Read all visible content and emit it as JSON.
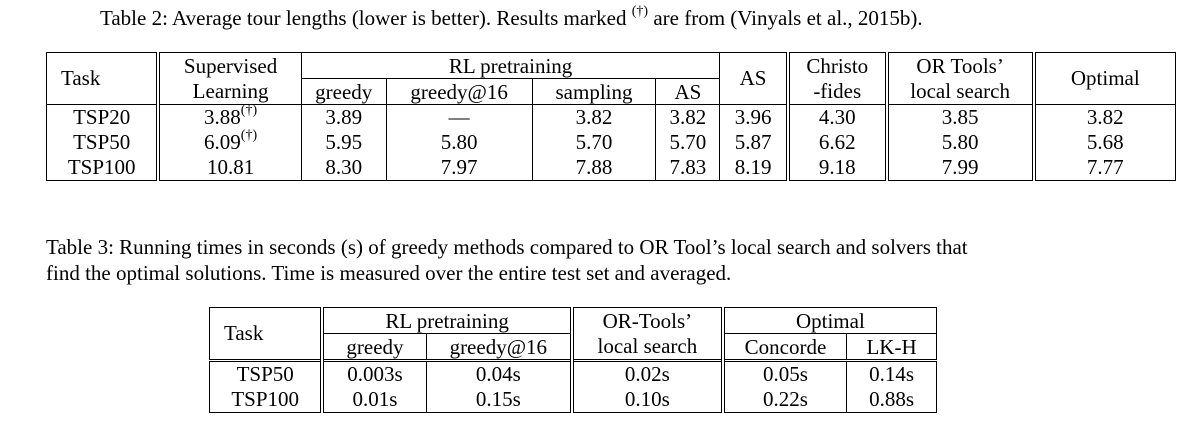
{
  "table2": {
    "caption_text": "Table 2: Average tour lengths (lower is better). Results marked ",
    "caption_mark": "(†)",
    "caption_tail": " are from (Vinyals et al., 2015b).",
    "headers": {
      "task": "Task",
      "supervised_line1": "Supervised",
      "supervised_line2": "Learning",
      "rl_group": "RL pretraining",
      "rl_greedy": "greedy",
      "rl_greedy16": "greedy@16",
      "rl_sampling": "sampling",
      "rl_as": "AS",
      "as": "AS",
      "christo_line1": "Christo",
      "christo_line2": "-fides",
      "ortools_line1": "OR Tools’",
      "ortools_line2": "local search",
      "optimal": "Optimal"
    },
    "rows": [
      {
        "task": "TSP20",
        "supervised": "3.88",
        "supervised_mark": "(†)",
        "greedy": "3.89",
        "greedy16": "—",
        "sampling": "3.82",
        "rl_as": "3.82",
        "as": "3.96",
        "christofides": "4.30",
        "ortools": "3.85",
        "optimal": "3.82"
      },
      {
        "task": "TSP50",
        "supervised": "6.09",
        "supervised_mark": "(†)",
        "greedy": "5.95",
        "greedy16": "5.80",
        "sampling": "5.70",
        "rl_as": "5.70",
        "as": "5.87",
        "christofides": "6.62",
        "ortools": "5.80",
        "optimal": "5.68"
      },
      {
        "task": "TSP100",
        "supervised": "10.81",
        "supervised_mark": "",
        "greedy": "8.30",
        "greedy16": "7.97",
        "sampling": "7.88",
        "rl_as": "7.83",
        "as": "8.19",
        "christofides": "9.18",
        "ortools": "7.99",
        "optimal": "7.77"
      }
    ]
  },
  "table3": {
    "caption_line1": "Table 3: Running times in seconds (s) of greedy methods compared to OR Tool’s local search and solvers that",
    "caption_line2": "find the optimal solutions. Time is measured over the entire test set and averaged.",
    "headers": {
      "task": "Task",
      "rl_group": "RL pretraining",
      "rl_greedy": "greedy",
      "rl_greedy16": "greedy@16",
      "ortools_line1": "OR-Tools’",
      "ortools_line2": "local search",
      "optimal_group": "Optimal",
      "concorde": "Concorde",
      "lkh": "LK-H"
    },
    "rows": [
      {
        "task": "TSP50",
        "greedy": "0.003s",
        "greedy16": "0.04s",
        "ortools": "0.02s",
        "concorde": "0.05s",
        "lkh": "0.14s"
      },
      {
        "task": "TSP100",
        "greedy": "0.01s",
        "greedy16": "0.15s",
        "ortools": "0.10s",
        "concorde": "0.22s",
        "lkh": "0.88s"
      }
    ]
  }
}
